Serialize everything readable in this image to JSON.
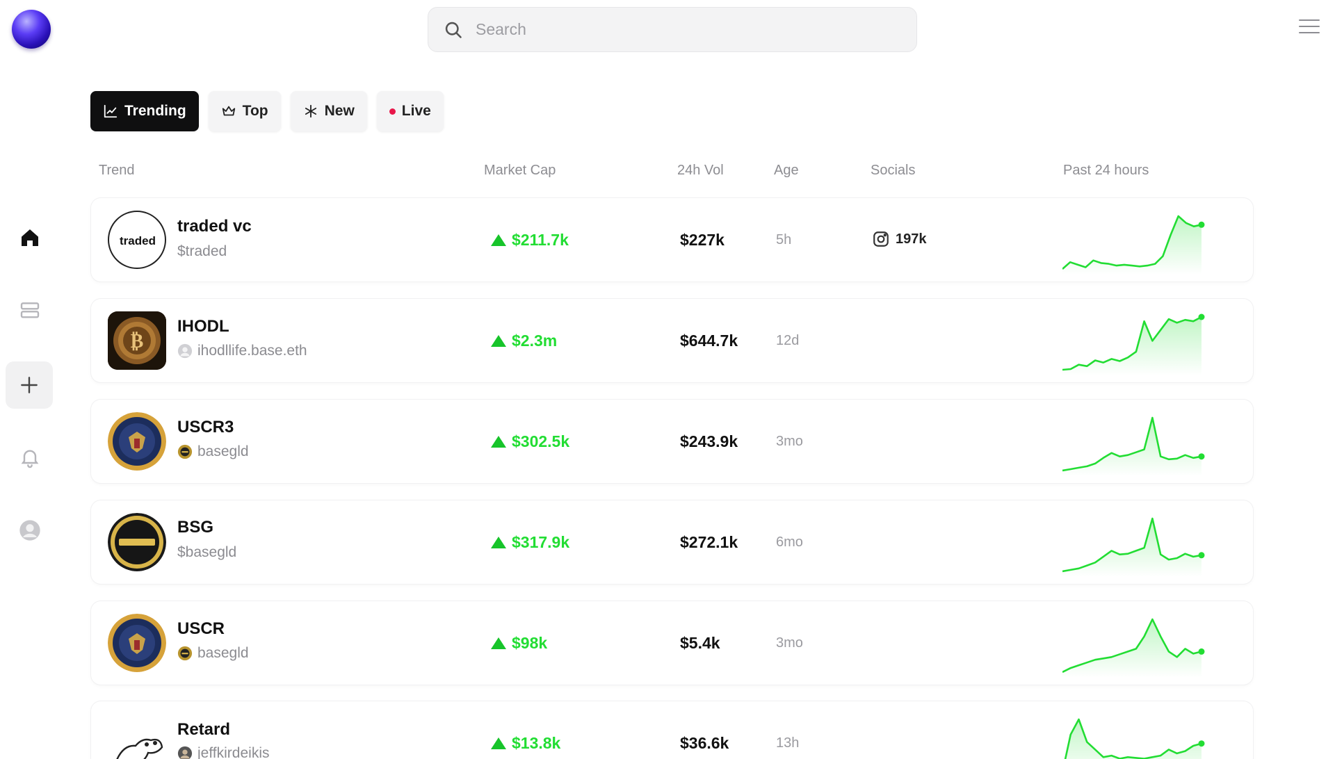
{
  "search": {
    "placeholder": "Search"
  },
  "tabs": [
    {
      "label": "Trending",
      "icon": "chart-icon",
      "active": true
    },
    {
      "label": "Top",
      "icon": "crown-icon",
      "active": false
    },
    {
      "label": "New",
      "icon": "sparkle-icon",
      "active": false
    },
    {
      "label": "Live",
      "icon": "live-dot-icon",
      "active": false
    }
  ],
  "columns": {
    "trend": "Trend",
    "market_cap": "Market Cap",
    "vol_24h": "24h Vol",
    "age": "Age",
    "socials": "Socials",
    "past_24h": "Past 24 hours"
  },
  "sidebar": {
    "items": [
      "home-icon",
      "database-icon",
      "plus-icon",
      "bell-icon",
      "user-icon"
    ]
  },
  "colors": {
    "accent_green": "#22dd33",
    "tab_active_bg": "#0f0f10",
    "live_dot": "#e8174a"
  },
  "rows": [
    {
      "name": "traded vc",
      "sub": "$traded",
      "sub_has_icon": false,
      "market_cap": "$211.7k",
      "volume": "$227k",
      "age": "5h",
      "socials": "197k",
      "spark": [
        20,
        28,
        25,
        22,
        30,
        27,
        26,
        24,
        25,
        24,
        23,
        24,
        26,
        35,
        60,
        82,
        74,
        70,
        72
      ]
    },
    {
      "name": "IHODL",
      "sub": "ihodllife.base.eth",
      "sub_has_icon": true,
      "market_cap": "$2.3m",
      "volume": "$644.7k",
      "age": "12d",
      "socials": "",
      "spark": [
        5,
        6,
        12,
        10,
        18,
        15,
        20,
        17,
        22,
        30,
        72,
        45,
        60,
        75,
        70,
        74,
        72,
        78
      ]
    },
    {
      "name": "USCR3",
      "sub": "basegld",
      "sub_has_icon": true,
      "market_cap": "$302.5k",
      "volume": "$243.9k",
      "age": "3mo",
      "socials": "",
      "spark": [
        10,
        12,
        14,
        16,
        20,
        28,
        35,
        30,
        32,
        36,
        40,
        85,
        30,
        26,
        27,
        32,
        28,
        30
      ]
    },
    {
      "name": "BSG",
      "sub": "$basegld",
      "sub_has_icon": false,
      "market_cap": "$317.9k",
      "volume": "$272.1k",
      "age": "6mo",
      "socials": "",
      "spark": [
        10,
        12,
        14,
        18,
        22,
        30,
        38,
        33,
        34,
        38,
        42,
        82,
        33,
        26,
        28,
        34,
        30,
        32
      ]
    },
    {
      "name": "USCR",
      "sub": "basegld",
      "sub_has_icon": true,
      "market_cap": "$98k",
      "volume": "$5.4k",
      "age": "3mo",
      "socials": "",
      "spark": [
        8,
        14,
        18,
        22,
        26,
        28,
        30,
        34,
        38,
        42,
        60,
        85,
        60,
        38,
        30,
        42,
        35,
        38
      ]
    },
    {
      "name": "Retard",
      "sub": "jeffkirdeikis",
      "sub_has_icon": true,
      "market_cap": "$13.8k",
      "volume": "$36.6k",
      "age": "13h",
      "socials": "",
      "spark": [
        10,
        60,
        80,
        50,
        40,
        30,
        32,
        28,
        30,
        29,
        28,
        30,
        32,
        40,
        35,
        38,
        45,
        48
      ]
    }
  ]
}
